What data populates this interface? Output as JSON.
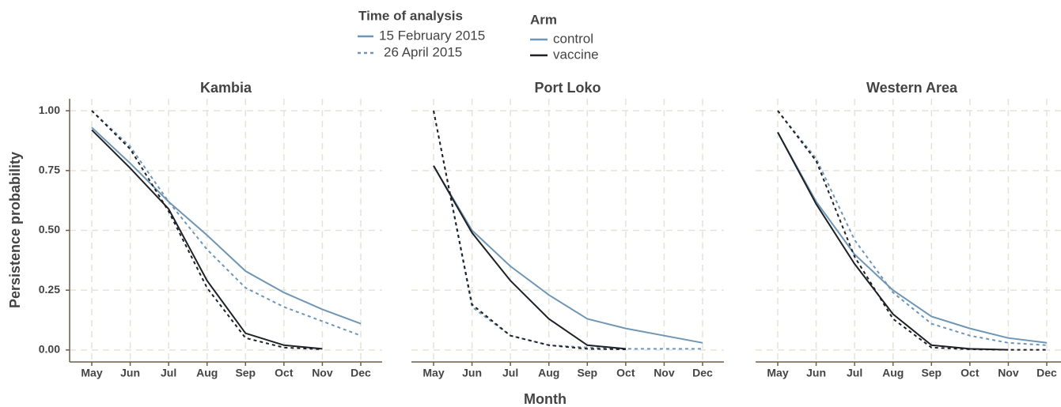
{
  "legend": {
    "time": {
      "title": "Time of analysis",
      "items": [
        {
          "label": "15 February 2015",
          "dash": "none"
        },
        {
          "label": "26 April 2015",
          "dash": "4,4"
        }
      ]
    },
    "arm": {
      "title": "Arm",
      "items": [
        {
          "label": "control",
          "color": "#6f96b4"
        },
        {
          "label": "vaccine",
          "color": "#1e2227"
        }
      ]
    }
  },
  "x_label": "Month",
  "y_label": "Persistence probability",
  "chart_data": [
    {
      "type": "line",
      "title": "Kambia",
      "categories": [
        "May",
        "Jun",
        "Jul",
        "Aug",
        "Sep",
        "Oct",
        "Nov",
        "Dec"
      ],
      "ylim": [
        -0.05,
        1.05
      ],
      "yticks": [
        {
          "value": 0,
          "label": "0.00"
        },
        {
          "value": 0.25,
          "label": "0.25"
        },
        {
          "value": 0.5,
          "label": "0.50"
        },
        {
          "value": 0.75,
          "label": "0.75"
        },
        {
          "value": 1,
          "label": "1.00"
        }
      ],
      "grid": true,
      "series": [
        {
          "arm": "control",
          "time": "15 February 2015",
          "values": [
            0.93,
            0.78,
            0.62,
            0.48,
            0.33,
            0.24,
            0.17,
            0.11
          ]
        },
        {
          "arm": "control",
          "time": "26 April 2015",
          "values": [
            1.0,
            0.85,
            0.62,
            0.42,
            0.26,
            0.18,
            0.12,
            0.06
          ]
        },
        {
          "arm": "vaccine",
          "time": "15 February 2015",
          "values": [
            0.92,
            0.76,
            0.59,
            0.29,
            0.07,
            0.02,
            0.005,
            null
          ]
        },
        {
          "arm": "vaccine",
          "time": "26 April 2015",
          "values": [
            1.0,
            0.84,
            0.58,
            0.26,
            0.05,
            0.01,
            0.003,
            null
          ]
        }
      ]
    },
    {
      "type": "line",
      "title": "Port Loko",
      "categories": [
        "May",
        "Jun",
        "Jul",
        "Aug",
        "Sep",
        "Oct",
        "Nov",
        "Dec"
      ],
      "ylim": [
        -0.05,
        1.05
      ],
      "yticks": [
        {
          "value": 0,
          "label": "0.00"
        },
        {
          "value": 0.25,
          "label": "0.25"
        },
        {
          "value": 0.5,
          "label": "0.50"
        },
        {
          "value": 0.75,
          "label": "0.75"
        },
        {
          "value": 1,
          "label": "1.00"
        }
      ],
      "grid": true,
      "series": [
        {
          "arm": "control",
          "time": "15 February 2015",
          "values": [
            0.77,
            0.5,
            0.35,
            0.23,
            0.13,
            0.09,
            0.06,
            0.03
          ]
        },
        {
          "arm": "control",
          "time": "26 April 2015",
          "values": [
            1.0,
            0.18,
            0.06,
            0.02,
            0.01,
            0.005,
            0.005,
            0.005
          ]
        },
        {
          "arm": "vaccine",
          "time": "15 February 2015",
          "values": [
            0.77,
            0.49,
            0.29,
            0.13,
            0.02,
            0.005,
            null,
            null
          ]
        },
        {
          "arm": "vaccine",
          "time": "26 April 2015",
          "values": [
            1.0,
            0.19,
            0.06,
            0.02,
            0.005,
            0.003,
            null,
            null
          ]
        }
      ]
    },
    {
      "type": "line",
      "title": "Western Area",
      "categories": [
        "May",
        "Jun",
        "Jul",
        "Aug",
        "Sep",
        "Oct",
        "Nov",
        "Dec"
      ],
      "ylim": [
        -0.05,
        1.05
      ],
      "yticks": [
        {
          "value": 0,
          "label": "0.00"
        },
        {
          "value": 0.25,
          "label": "0.25"
        },
        {
          "value": 0.5,
          "label": "0.50"
        },
        {
          "value": 0.75,
          "label": "0.75"
        },
        {
          "value": 1,
          "label": "1.00"
        }
      ],
      "grid": true,
      "series": [
        {
          "arm": "control",
          "time": "15 February 2015",
          "values": [
            0.91,
            0.62,
            0.4,
            0.25,
            0.14,
            0.09,
            0.05,
            0.03
          ]
        },
        {
          "arm": "control",
          "time": "26 April 2015",
          "values": [
            1.0,
            0.8,
            0.46,
            0.24,
            0.11,
            0.06,
            0.03,
            0.02
          ]
        },
        {
          "arm": "vaccine",
          "time": "15 February 2015",
          "values": [
            0.91,
            0.61,
            0.36,
            0.15,
            0.02,
            0.005,
            0.001,
            null
          ]
        },
        {
          "arm": "vaccine",
          "time": "26 April 2015",
          "values": [
            1.0,
            0.79,
            0.39,
            0.13,
            0.01,
            0.003,
            0.001,
            0.001
          ]
        }
      ]
    }
  ]
}
